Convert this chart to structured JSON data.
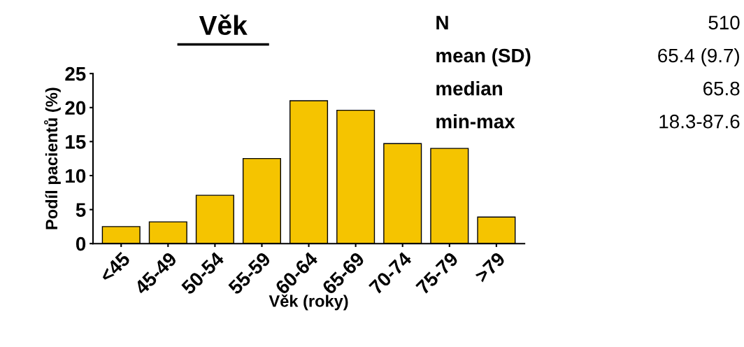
{
  "chart_data": {
    "type": "bar",
    "title": "Věk",
    "xlabel": "Věk (roky)",
    "ylabel": "Podíl pacientů (%)",
    "categories": [
      "<45",
      "45-49",
      "50-54",
      "55-59",
      "60-64",
      "65-69",
      "70-74",
      "75-79",
      ">79"
    ],
    "values": [
      2.5,
      3.2,
      7.1,
      12.5,
      21.0,
      19.6,
      14.7,
      14.0,
      3.9
    ],
    "color": "#f5c400",
    "ylim": [
      0,
      25
    ],
    "yticks": [
      0,
      5,
      10,
      15,
      20,
      25
    ],
    "grid": false,
    "annotations": [
      "N",
      "510",
      "mean (SD)",
      "65.4 (9.7)",
      "median",
      "65.8",
      "min-max",
      "18.3-87.6"
    ]
  }
}
